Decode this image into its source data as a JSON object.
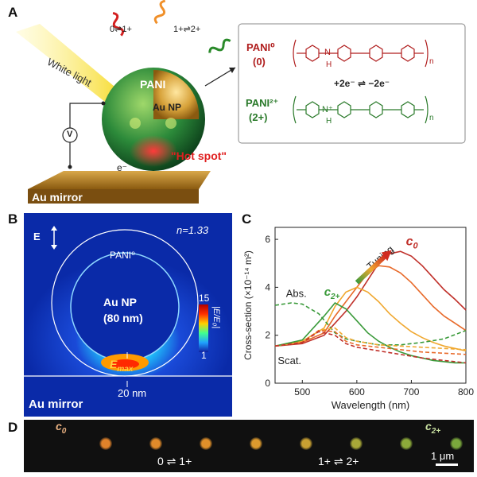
{
  "panels": {
    "a": "A",
    "b": "B",
    "c": "C",
    "d": "D"
  },
  "panel_a": {
    "white_light": "White light",
    "pani": "PANI",
    "au_np": "Au NP",
    "hot_spot": "\"Hot spot\"",
    "electron": "e⁻",
    "voltmeter": "V",
    "au_mirror": "Au mirror",
    "transition_1": "0⇌1+",
    "transition_2": "1+⇌2+",
    "pani0_name": "PANI⁰",
    "pani0_charge": "(0)",
    "pani2_name": "PANI²⁺",
    "pani2_charge": "(2+)",
    "redox": "+2e⁻ ⇌ −2e⁻",
    "n_sub": "n",
    "nh": "N",
    "h": "H",
    "nplus": "N⁺"
  },
  "panel_b": {
    "efield": "E",
    "refractive": "n=1.33",
    "pani0": "PANI⁰",
    "au_np": "Au NP",
    "size": "(80 nm)",
    "emax": "E",
    "emax_sub": "max",
    "gap": "20 nm",
    "au_mirror": "Au mirror",
    "colorbar_label": "|E/E₀|",
    "colorbar_max": "15",
    "colorbar_min": "1"
  },
  "panel_d": {
    "c0": "c",
    "c0_sub": "0",
    "c2": "c",
    "c2_sub": "2+",
    "t1": "0 ⇌ 1+",
    "t2": "1+ ⇌ 2+",
    "scale": "1 μm",
    "dot_colors": [
      "#e0822a",
      "#e08a2a",
      "#e0902a",
      "#dc9a2e",
      "#c8a032",
      "#a8a838",
      "#8caa3a",
      "#7aa83c"
    ]
  },
  "chart_data": {
    "type": "line",
    "xlabel": "Wavelength (nm)",
    "ylabel": "Cross-section (×10⁻¹⁴ m²)",
    "xlim": [
      450,
      800
    ],
    "ylim": [
      0,
      6.5
    ],
    "xticks": [
      500,
      600,
      700,
      800
    ],
    "yticks": [
      0,
      2,
      4,
      6
    ],
    "annotations": {
      "abs": "Abs.",
      "scat": "Scat.",
      "tuning": "Tuning",
      "c0": "c",
      "c0_sub": "0",
      "c2": "c",
      "c2_sub": "2+"
    },
    "series": [
      {
        "color": "#c0302a",
        "style": "solid",
        "x": [
          450,
          500,
          540,
          560,
          580,
          600,
          620,
          640,
          660,
          680,
          700,
          720,
          740,
          760,
          780,
          800
        ],
        "y": [
          1.55,
          1.65,
          2.0,
          2.5,
          3.0,
          3.6,
          4.3,
          5.0,
          5.4,
          5.5,
          5.3,
          4.9,
          4.4,
          3.9,
          3.5,
          3.05
        ]
      },
      {
        "color": "#e86a2a",
        "style": "solid",
        "x": [
          450,
          500,
          540,
          560,
          580,
          600,
          620,
          640,
          660,
          680,
          700,
          720,
          740,
          760,
          780,
          800
        ],
        "y": [
          1.55,
          1.7,
          2.1,
          2.8,
          3.4,
          4.0,
          4.6,
          4.9,
          4.85,
          4.6,
          4.2,
          3.7,
          3.2,
          2.8,
          2.5,
          2.2
        ]
      },
      {
        "color": "#f0a830",
        "style": "solid",
        "x": [
          450,
          500,
          540,
          560,
          580,
          600,
          620,
          640,
          660,
          680,
          700,
          720,
          740,
          760,
          780,
          800
        ],
        "y": [
          1.55,
          1.75,
          2.3,
          3.2,
          3.8,
          4.0,
          3.8,
          3.4,
          2.9,
          2.5,
          2.15,
          1.9,
          1.7,
          1.55,
          1.45,
          1.35
        ]
      },
      {
        "color": "#3a9a3a",
        "style": "solid",
        "x": [
          450,
          500,
          540,
          560,
          580,
          600,
          620,
          640,
          660,
          680,
          700,
          720,
          740,
          760,
          780,
          800
        ],
        "y": [
          1.55,
          1.8,
          2.8,
          3.35,
          3.1,
          2.6,
          2.1,
          1.75,
          1.5,
          1.3,
          1.15,
          1.05,
          0.95,
          0.9,
          0.85,
          0.85
        ]
      },
      {
        "color": "#3a9a3a",
        "style": "dash",
        "x": [
          450,
          480,
          500,
          530,
          560,
          580,
          600,
          640,
          680,
          720,
          760,
          800
        ],
        "y": [
          3.25,
          3.35,
          3.3,
          2.9,
          2.1,
          1.85,
          1.75,
          1.6,
          1.6,
          1.7,
          1.85,
          2.2
        ]
      },
      {
        "color": "#f0a830",
        "style": "dash",
        "x": [
          450,
          500,
          530,
          560,
          580,
          600,
          640,
          680,
          720,
          760,
          800
        ],
        "y": [
          1.55,
          1.7,
          2.2,
          2.3,
          1.9,
          1.75,
          1.6,
          1.55,
          1.5,
          1.45,
          1.4
        ]
      },
      {
        "color": "#e86a2a",
        "style": "dash",
        "x": [
          450,
          500,
          530,
          560,
          580,
          600,
          640,
          680,
          720,
          760,
          800
        ],
        "y": [
          1.55,
          1.7,
          2.2,
          2.15,
          1.75,
          1.6,
          1.5,
          1.4,
          1.3,
          1.25,
          1.2
        ]
      },
      {
        "color": "#c0302a",
        "style": "dash",
        "x": [
          450,
          500,
          530,
          560,
          580,
          600,
          640,
          680,
          720,
          760,
          800
        ],
        "y": [
          1.55,
          1.7,
          2.15,
          2.0,
          1.65,
          1.5,
          1.35,
          1.2,
          1.05,
          0.95,
          0.85
        ]
      }
    ]
  }
}
